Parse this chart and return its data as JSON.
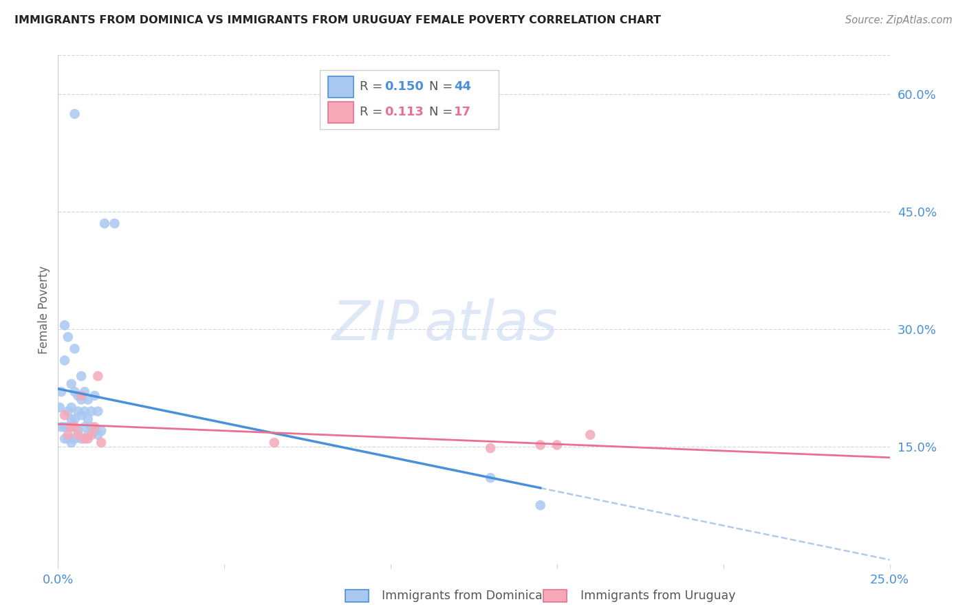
{
  "title": "IMMIGRANTS FROM DOMINICA VS IMMIGRANTS FROM URUGUAY FEMALE POVERTY CORRELATION CHART",
  "source": "Source: ZipAtlas.com",
  "ylabel": "Female Poverty",
  "xlim": [
    0.0,
    0.25
  ],
  "ylim": [
    0.0,
    0.65
  ],
  "yticks": [
    0.15,
    0.3,
    0.45,
    0.6
  ],
  "xtick_positions": [
    0.0,
    0.05,
    0.1,
    0.15,
    0.2,
    0.25
  ],
  "dominica_R": "0.150",
  "dominica_N": "44",
  "uruguay_R": "0.113",
  "uruguay_N": "17",
  "dominica_color": "#a8c8f0",
  "uruguay_color": "#f5a8b8",
  "dominica_line_color": "#4a90d9",
  "uruguay_line_color": "#e87090",
  "dashed_line_color": "#a0bce0",
  "grid_color": "#d0d8e8",
  "watermark_zip": "ZIP",
  "watermark_atlas": "atlas",
  "watermark_color": "#c8d8f0",
  "title_color": "#222222",
  "axis_label_color": "#4a90d9",
  "ylabel_color": "#666666",
  "source_color": "#888888",
  "dominica_x": [
    0.005,
    0.0005,
    0.001,
    0.001,
    0.002,
    0.002,
    0.002,
    0.002,
    0.003,
    0.003,
    0.003,
    0.003,
    0.004,
    0.004,
    0.004,
    0.004,
    0.005,
    0.005,
    0.005,
    0.005,
    0.006,
    0.006,
    0.006,
    0.007,
    0.007,
    0.007,
    0.007,
    0.008,
    0.008,
    0.008,
    0.009,
    0.009,
    0.009,
    0.01,
    0.01,
    0.011,
    0.011,
    0.012,
    0.012,
    0.013,
    0.014,
    0.017,
    0.13,
    0.145
  ],
  "dominica_y": [
    0.575,
    0.2,
    0.22,
    0.175,
    0.305,
    0.26,
    0.175,
    0.16,
    0.29,
    0.195,
    0.175,
    0.16,
    0.23,
    0.2,
    0.185,
    0.155,
    0.275,
    0.22,
    0.185,
    0.16,
    0.215,
    0.195,
    0.17,
    0.24,
    0.21,
    0.19,
    0.16,
    0.22,
    0.195,
    0.175,
    0.21,
    0.185,
    0.165,
    0.195,
    0.175,
    0.215,
    0.17,
    0.195,
    0.165,
    0.17,
    0.435,
    0.435,
    0.11,
    0.075
  ],
  "uruguay_x": [
    0.002,
    0.003,
    0.004,
    0.005,
    0.006,
    0.007,
    0.008,
    0.009,
    0.01,
    0.011,
    0.012,
    0.013,
    0.065,
    0.13,
    0.145,
    0.15,
    0.16
  ],
  "uruguay_y": [
    0.19,
    0.165,
    0.175,
    0.175,
    0.165,
    0.215,
    0.16,
    0.16,
    0.165,
    0.175,
    0.24,
    0.155,
    0.155,
    0.148,
    0.152,
    0.152,
    0.165
  ]
}
